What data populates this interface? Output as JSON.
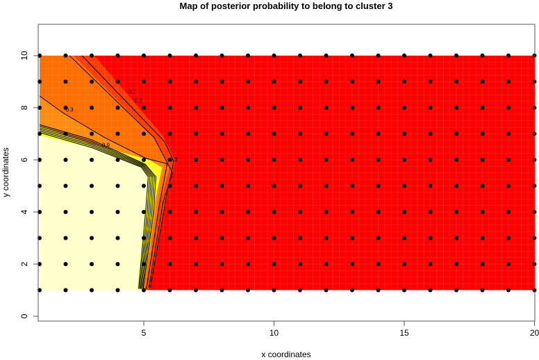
{
  "chart_data": {
    "type": "heatmap",
    "title": "Map of posterior probability to belong to cluster  3",
    "xlabel": "x coordinates",
    "ylabel": "y coordinates",
    "xlim": [
      1,
      20
    ],
    "ylim": [
      -0.2,
      11.2
    ],
    "xticks": [
      5,
      10,
      15,
      20
    ],
    "yticks": [
      0,
      2,
      4,
      6,
      8,
      10
    ],
    "grid": false,
    "points": {
      "x_range": [
        1,
        20
      ],
      "y_range": [
        1,
        10
      ],
      "step": 1,
      "color": "#000000"
    },
    "contour_levels": [
      0.1,
      0.2,
      0.3,
      0.4,
      0.5,
      0.6,
      0.7,
      0.8,
      0.9
    ],
    "contour_labels": [
      "0.1",
      "0.2",
      "0.3",
      "0.9"
    ],
    "colors": {
      "low": "#FF0000",
      "low_mid": "#FF3C00",
      "mid": "#FF6E00",
      "mid_high": "#FF8C10",
      "high_edge": "#FFFF20",
      "high": "#FFFFCC"
    }
  }
}
